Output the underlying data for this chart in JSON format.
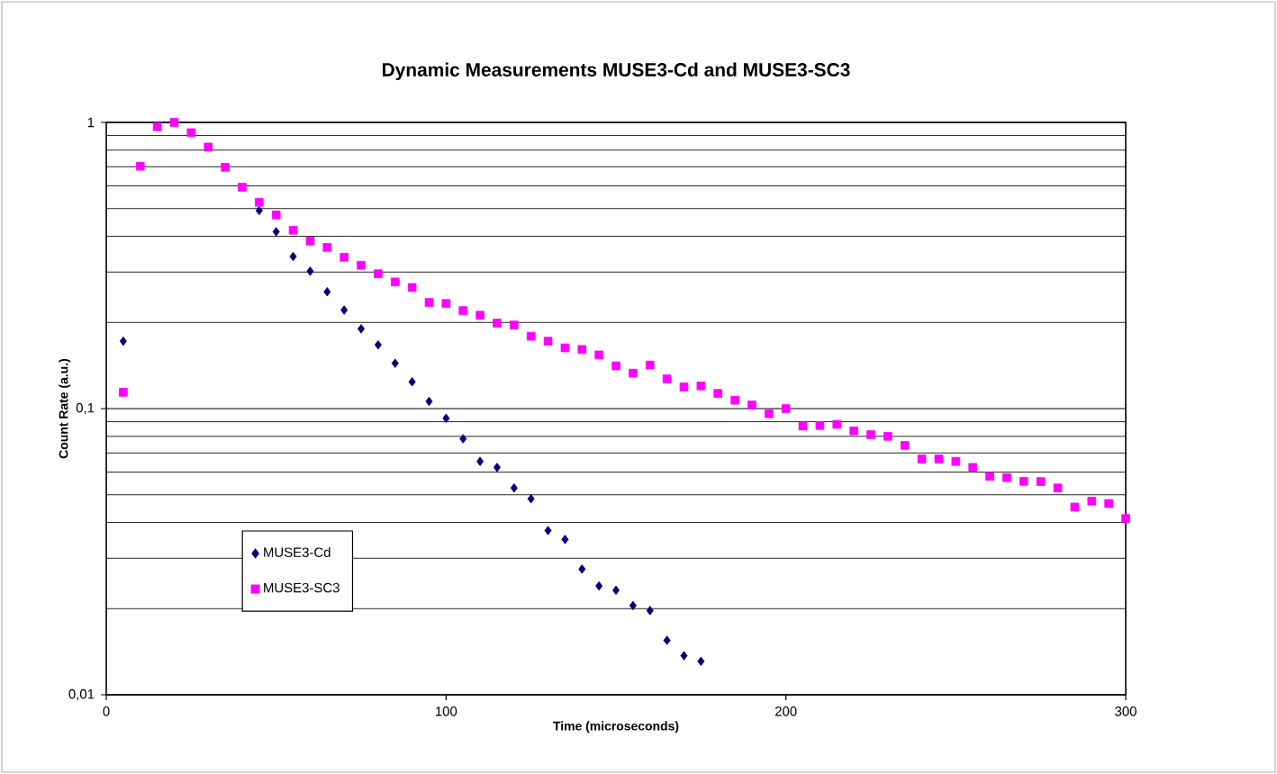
{
  "chart_data": {
    "type": "scatter",
    "title": "Dynamic Measurements MUSE3-Cd and MUSE3-SC3",
    "xlabel": "Time (microseconds)",
    "ylabel": "Count Rate (a.u.)",
    "x": [
      5,
      10,
      15,
      20,
      25,
      30,
      35,
      40,
      45,
      50,
      55,
      60,
      65,
      70,
      75,
      80,
      85,
      90,
      95,
      100,
      105,
      110,
      115,
      120,
      125,
      130,
      135,
      140,
      145,
      150,
      155,
      160,
      165,
      170,
      175,
      180,
      185,
      190,
      195,
      200,
      205,
      210,
      215,
      220,
      225,
      230,
      235,
      240,
      245,
      250,
      255,
      260,
      265,
      270,
      275,
      280,
      285,
      290,
      295,
      300
    ],
    "series": [
      {
        "name": "MUSE3-Cd",
        "color": "#000080",
        "marker": "diamond",
        "values": [
          0.172,
          null,
          null,
          null,
          null,
          null,
          null,
          null,
          0.492,
          0.415,
          0.34,
          0.302,
          0.256,
          0.221,
          0.19,
          0.167,
          0.144,
          0.124,
          0.106,
          0.0925,
          0.0785,
          0.0654,
          0.0623,
          0.0528,
          0.0484,
          0.0375,
          0.0349,
          0.0275,
          0.024,
          0.0232,
          0.0205,
          0.0197,
          0.0155,
          0.0137,
          0.0131,
          null,
          null,
          null,
          null,
          null,
          null,
          null,
          null,
          null,
          null,
          null,
          null,
          null,
          null,
          null,
          null,
          null,
          null,
          null,
          null,
          null,
          null,
          null,
          null,
          null
        ]
      },
      {
        "name": "MUSE3-SC3",
        "color": "#ff00ff",
        "marker": "square",
        "values": [
          0.114,
          0.703,
          0.966,
          1.0,
          0.921,
          0.82,
          0.697,
          0.594,
          0.526,
          0.475,
          0.42,
          0.385,
          0.366,
          0.338,
          0.317,
          0.296,
          0.277,
          0.265,
          0.235,
          0.233,
          0.22,
          0.212,
          0.199,
          0.196,
          0.179,
          0.172,
          0.163,
          0.161,
          0.154,
          0.141,
          0.133,
          0.142,
          0.127,
          0.119,
          0.12,
          0.113,
          0.107,
          0.103,
          0.096,
          0.1,
          0.0869,
          0.0873,
          0.0881,
          0.0836,
          0.0811,
          0.08,
          0.0744,
          0.0667,
          0.0667,
          0.0654,
          0.0623,
          0.058,
          0.0574,
          0.0557,
          0.0556,
          0.0528,
          0.0453,
          0.0475,
          0.0466,
          0.0413
        ]
      }
    ],
    "xlim": [
      0,
      300
    ],
    "xticks": [
      0,
      100,
      200,
      300
    ],
    "ylim": [
      0.01,
      1
    ],
    "yticks": [
      {
        "value": 0.01,
        "label": "0,01"
      },
      {
        "value": 0.1,
        "label": "0,1"
      },
      {
        "value": 1,
        "label": "1"
      }
    ],
    "log": "y",
    "grid": "y",
    "legend": "bottom left"
  }
}
